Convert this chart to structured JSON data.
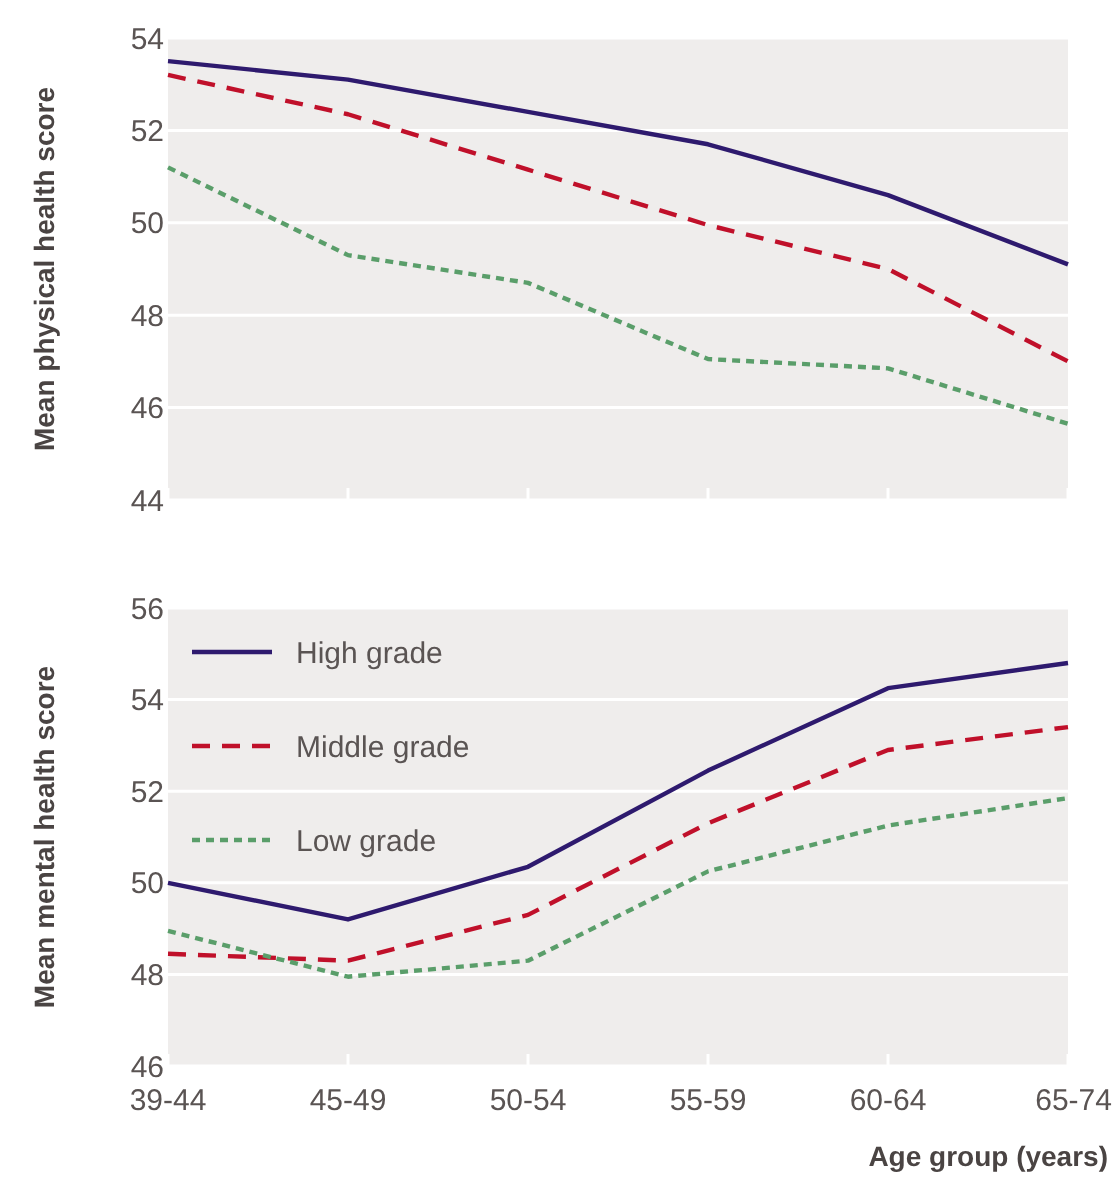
{
  "chart_data": [
    {
      "type": "line",
      "ylabel": "Mean physical health score",
      "categories": [
        null,
        null,
        null,
        null,
        null,
        null
      ],
      "ylim": [
        44,
        54
      ],
      "yticks": [
        44,
        46,
        48,
        50,
        52,
        54
      ],
      "grid": "y",
      "tick_labels": "y",
      "legend": false,
      "series": [
        {
          "color": "#2e1a6e",
          "line_style": "solid",
          "values": [
            53.5,
            53.1,
            52.4,
            51.7,
            50.6,
            49.1
          ]
        },
        {
          "color": "#c0102a",
          "line_style": "dashed",
          "values": [
            53.2,
            52.35,
            51.15,
            49.95,
            49.0,
            47.0
          ]
        },
        {
          "color": "#5a9e6a",
          "line_style": "dotted",
          "values": [
            51.2,
            49.3,
            48.7,
            47.05,
            46.85,
            45.65
          ]
        }
      ]
    },
    {
      "type": "line",
      "ylabel": "Mean mental health score",
      "xlabel": "Age group (years)",
      "categories": [
        "39-44",
        "45-49",
        "50-54",
        "55-59",
        "60-64",
        "65-74"
      ],
      "ylim": [
        46,
        56
      ],
      "yticks": [
        46,
        48,
        50,
        52,
        54,
        56
      ],
      "grid": "y",
      "legend": "top left",
      "series": [
        {
          "name": "High grade",
          "color": "#2e1a6e",
          "line_style": "solid",
          "values": [
            50.0,
            49.2,
            50.35,
            52.45,
            54.25,
            54.8
          ]
        },
        {
          "name": "Middle grade",
          "color": "#c0102a",
          "line_style": "dashed",
          "values": [
            48.45,
            48.3,
            49.3,
            51.3,
            52.9,
            53.4
          ]
        },
        {
          "name": "Low grade",
          "color": "#5a9e6a",
          "line_style": "dotted",
          "values": [
            48.95,
            47.95,
            48.3,
            50.25,
            51.25,
            51.85
          ]
        }
      ]
    }
  ]
}
